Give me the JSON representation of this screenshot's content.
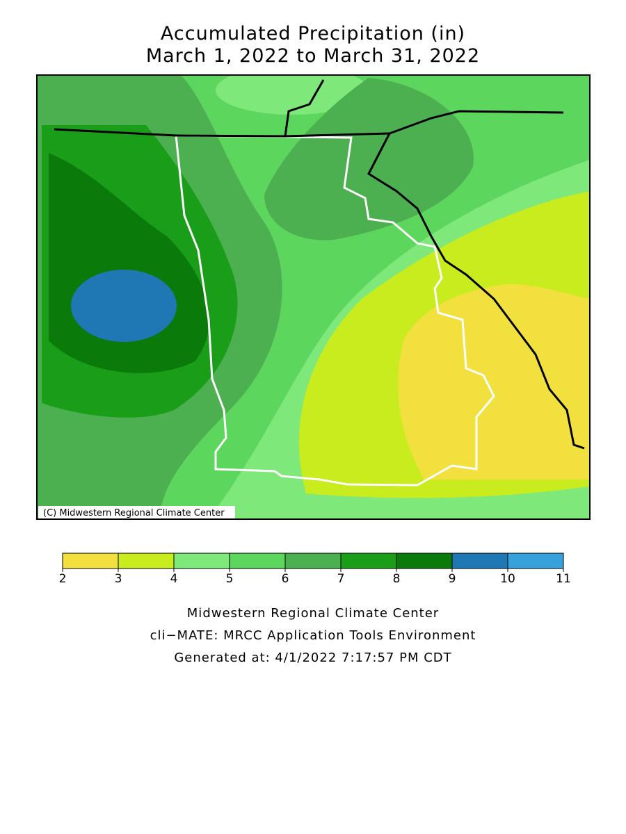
{
  "title": [
    "Accumulated Precipitation (in)",
    "March 1, 2022 to March 31, 2022"
  ],
  "credit": "(C) Midwestern Regional Climate Center",
  "colorbar": {
    "bins": [
      2,
      3,
      4,
      5,
      6,
      7,
      8,
      9,
      10,
      11
    ],
    "colors": [
      "#f2e03f",
      "#c8ec1e",
      "#7ee87a",
      "#5cd65c",
      "#4caf50",
      "#1a9e1a",
      "#0a7a0a",
      "#1f78b4",
      "#35a2dc"
    ]
  },
  "footer": [
    "Midwestern Regional Climate Center",
    "cli−MATE: MRCC Application Tools Environment",
    "Generated at: 4/1/2022 7:17:57 PM CDT"
  ]
}
